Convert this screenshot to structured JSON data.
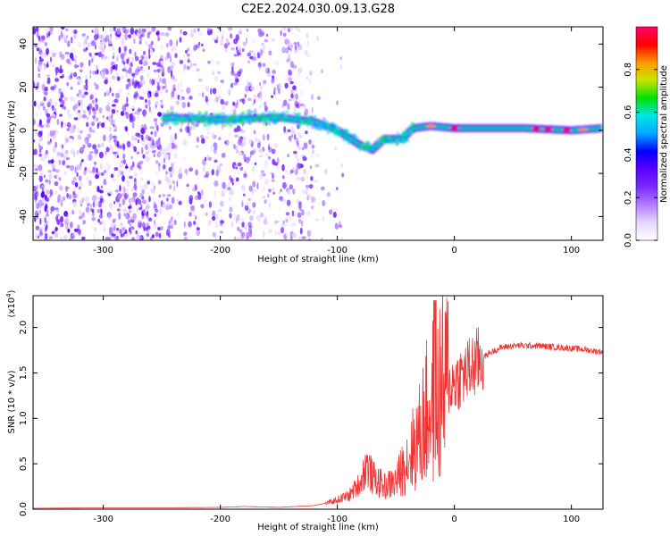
{
  "title": "C2E2.2024.030.09.13.G28",
  "colors": {
    "snr_line": "#ee3333",
    "axis": "#000000",
    "background": "#ffffff",
    "colormap": [
      "#ffffff",
      "#e6d6ff",
      "#b27cff",
      "#7a2bff",
      "#5a00ff",
      "#0000ff",
      "#00a8ff",
      "#00e5e5",
      "#00e000",
      "#c8e600",
      "#ff9900",
      "#ff0000",
      "#ff0066"
    ]
  },
  "chart_data": [
    {
      "id": "spectrogram",
      "type": "heatmap",
      "xlabel": "Height of straight line (km)",
      "ylabel": "Frequency (Hz)",
      "xlim": [
        -360,
        127
      ],
      "ylim": [
        -51,
        48
      ],
      "xticks": [
        -300,
        -200,
        -100,
        0,
        100
      ],
      "yticks": [
        -40,
        -20,
        0,
        20,
        40
      ],
      "colorbar": {
        "label": "Normalized spectral amplitude",
        "range": [
          0,
          1
        ],
        "ticks": [
          "0.0",
          "0.2",
          "0.4",
          "0.6",
          "0.8"
        ]
      },
      "ridge": [
        {
          "x": -250,
          "f": 6
        },
        {
          "x": -200,
          "f": 5
        },
        {
          "x": -150,
          "f": 6
        },
        {
          "x": -120,
          "f": 4
        },
        {
          "x": -100,
          "f": 0
        },
        {
          "x": -80,
          "f": -7
        },
        {
          "x": -70,
          "f": -9
        },
        {
          "x": -60,
          "f": -4
        },
        {
          "x": -45,
          "f": -4
        },
        {
          "x": -35,
          "f": 1
        },
        {
          "x": -20,
          "f": 2
        },
        {
          "x": 0,
          "f": 1
        },
        {
          "x": 60,
          "f": 1
        },
        {
          "x": 100,
          "f": 0
        },
        {
          "x": 127,
          "f": 1
        }
      ]
    },
    {
      "id": "snr",
      "type": "line",
      "xlabel": "Height of straight line (km)",
      "ylabel": "SNR (10 * v/v)",
      "yscale_label": "(x10",
      "yscale_exp": "4",
      "yscale_close": ")",
      "xlim": [
        -360,
        127
      ],
      "ylim": [
        0,
        2.35
      ],
      "xticks": [
        -300,
        -200,
        -100,
        0,
        100
      ],
      "yticks": [
        "0.0",
        "0.5",
        "1.0",
        "1.5",
        "2.0"
      ],
      "series": [
        {
          "name": "SNR",
          "x": [
            -360,
            -300,
            -250,
            -200,
            -180,
            -150,
            -120,
            -105,
            -90,
            -80,
            -75,
            -70,
            -60,
            -50,
            -40,
            -30,
            -25,
            -20,
            -15,
            -10,
            -5,
            0,
            10,
            20,
            30,
            40,
            50,
            60,
            70,
            80,
            90,
            100,
            110,
            120,
            127
          ],
          "y": [
            0.01,
            0.015,
            0.015,
            0.02,
            0.03,
            0.02,
            0.04,
            0.08,
            0.15,
            0.3,
            0.5,
            0.35,
            0.25,
            0.3,
            0.55,
            0.8,
            1.0,
            1.15,
            1.25,
            1.3,
            1.35,
            1.4,
            1.5,
            1.62,
            1.72,
            1.78,
            1.8,
            1.8,
            1.8,
            1.79,
            1.78,
            1.77,
            1.76,
            1.74,
            1.73
          ]
        }
      ]
    }
  ]
}
